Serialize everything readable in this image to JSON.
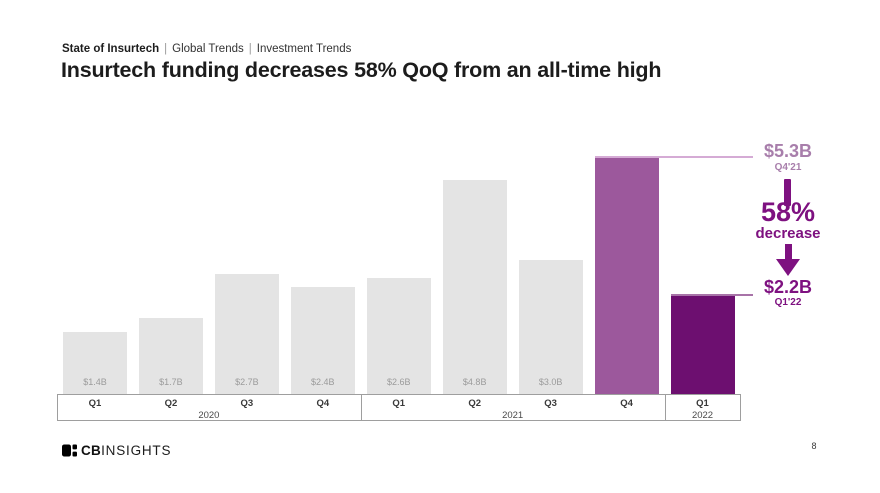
{
  "breadcrumb": {
    "primary": "State of Insurtech",
    "separator": "|",
    "secondary": "Global Trends",
    "tertiary": "Investment Trends"
  },
  "title": "Insurtech funding decreases 58% QoQ from an all-time high",
  "chart_data": {
    "type": "bar",
    "title": "Insurtech funding decreases 58% QoQ from an all-time high",
    "unit": "USD billions",
    "ylim": [
      0,
      5.5
    ],
    "grid": false,
    "bars": [
      {
        "quarter": "Q1",
        "year": "2020",
        "value": 1.4,
        "label": "$1.4B",
        "emphasis": "default"
      },
      {
        "quarter": "Q2",
        "year": "2020",
        "value": 1.7,
        "label": "$1.7B",
        "emphasis": "default"
      },
      {
        "quarter": "Q3",
        "year": "2020",
        "value": 2.7,
        "label": "$2.7B",
        "emphasis": "default"
      },
      {
        "quarter": "Q4",
        "year": "2020",
        "value": 2.4,
        "label": "$2.4B",
        "emphasis": "default"
      },
      {
        "quarter": "Q1",
        "year": "2021",
        "value": 2.6,
        "label": "$2.6B",
        "emphasis": "default"
      },
      {
        "quarter": "Q2",
        "year": "2021",
        "value": 4.8,
        "label": "$4.8B",
        "emphasis": "default"
      },
      {
        "quarter": "Q3",
        "year": "2021",
        "value": 3.0,
        "label": "$3.0B",
        "emphasis": "default"
      },
      {
        "quarter": "Q4",
        "year": "2021",
        "value": 5.3,
        "label": "",
        "emphasis": "peak"
      },
      {
        "quarter": "Q1",
        "year": "2022",
        "value": 2.2,
        "label": "",
        "emphasis": "current"
      }
    ],
    "year_groups": [
      {
        "label": "2020",
        "count": 4
      },
      {
        "label": "2021",
        "count": 4
      },
      {
        "label": "2022",
        "count": 1
      }
    ],
    "annotations": {
      "high_value": "$5.3B",
      "high_period": "Q4'21",
      "change_pct": "58%",
      "change_word": "decrease",
      "low_value": "$2.2B",
      "low_period": "Q1'22"
    }
  },
  "colors": {
    "bar_default": "#e4e4e4",
    "bar_peak": "#9c589c",
    "bar_current": "#6d0f70",
    "annotation_dark": "#7e1180",
    "annotation_light": "#a87eab",
    "bar_label": "#9b9b9b",
    "connector_high": "#d5abd5",
    "connector_low": "#a873a8"
  },
  "footer": {
    "logo_cb": "CB",
    "logo_insights": "INSIGHTS",
    "page_number": "8"
  }
}
